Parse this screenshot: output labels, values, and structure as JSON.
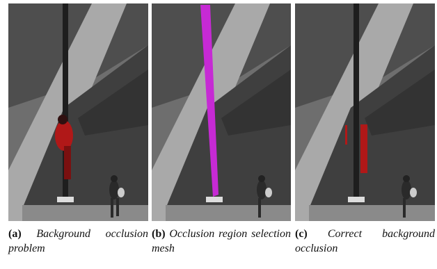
{
  "figure": {
    "panels": [
      {
        "label": "(a)",
        "caption": "Background occlusion problem"
      },
      {
        "label": "(b)",
        "caption": "Occlusion region selection mesh"
      },
      {
        "label": "(c)",
        "caption": "Correct background occlusion"
      }
    ]
  }
}
